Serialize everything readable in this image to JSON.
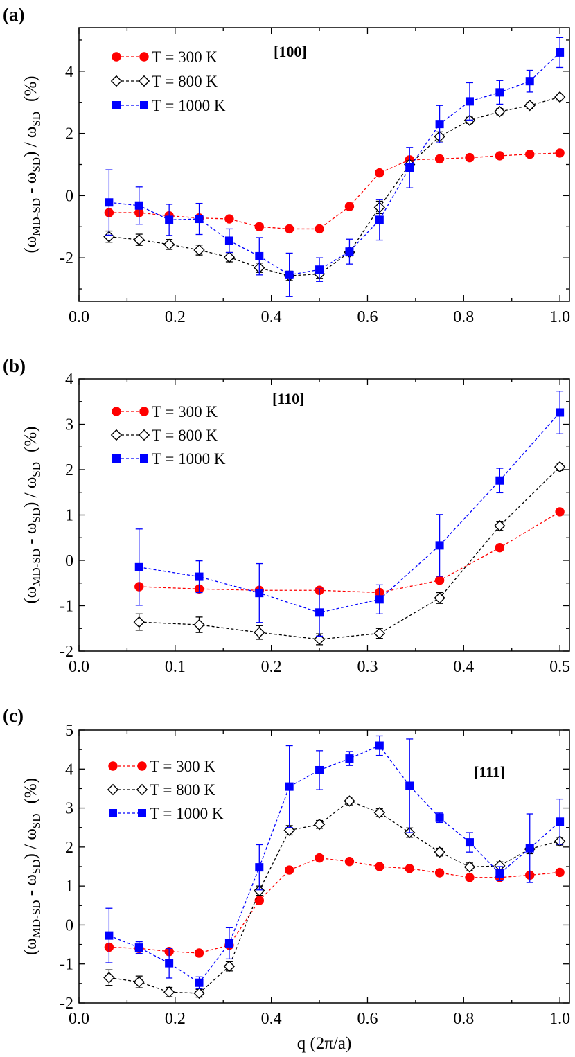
{
  "figure": {
    "xlabel": "q (2π/a)"
  },
  "legend": [
    {
      "key": "300",
      "text": "T = 300 K"
    },
    {
      "key": "800",
      "text": "T = 800 K"
    },
    {
      "key": "1000",
      "text": "T = 1000 K"
    }
  ],
  "ylabel": {
    "open": "(ω",
    "sub1": "MD-SD",
    "mid": " - ω",
    "sub2": "SD",
    "mid2": ") / ω",
    "sub3": "SD",
    "unit": "(%)"
  },
  "chart_data": [
    {
      "type": "line",
      "panel": "(a)",
      "direction": "[100]",
      "xlim": [
        0,
        1.02
      ],
      "ylim": [
        -3.4,
        5.4
      ],
      "xticks": [
        0.0,
        0.2,
        0.4,
        0.6,
        0.8,
        1.0
      ],
      "xtick_labels": [
        "0.0",
        "0.2",
        "0.4",
        "0.6",
        "0.8",
        "1.0"
      ],
      "yticks": [
        -2,
        0,
        2,
        4
      ],
      "ytick_labels": [
        "-2",
        "0",
        "2",
        "4"
      ],
      "x": [
        0.0625,
        0.125,
        0.1875,
        0.25,
        0.3125,
        0.375,
        0.4375,
        0.5,
        0.5625,
        0.625,
        0.6875,
        0.75,
        0.8125,
        0.875,
        0.9375,
        1.0
      ],
      "series": [
        {
          "key": "300",
          "name": "T = 300 K",
          "color": "#ff0000",
          "marker": "circle",
          "values": [
            -0.55,
            -0.55,
            -0.65,
            -0.72,
            -0.75,
            -1.0,
            -1.07,
            -1.07,
            -0.35,
            0.73,
            1.15,
            1.18,
            1.22,
            1.28,
            1.33,
            1.37
          ],
          "errors": [
            0,
            0,
            0,
            0,
            0,
            0,
            0,
            0,
            0,
            0,
            0,
            0,
            0,
            0,
            0,
            0
          ]
        },
        {
          "key": "800",
          "name": "T = 800 K",
          "color": "#000000",
          "marker": "diamond",
          "values": [
            -1.32,
            -1.42,
            -1.57,
            -1.75,
            -1.98,
            -2.32,
            -2.58,
            -2.52,
            -1.82,
            -0.38,
            1.0,
            1.9,
            2.42,
            2.7,
            2.9,
            3.17
          ],
          "errors": [
            0.18,
            0.18,
            0.16,
            0.16,
            0.15,
            0.15,
            0.15,
            0.15,
            0.12,
            0.2,
            0.12,
            0.15,
            0.1,
            0.1,
            0.1,
            0.1
          ]
        },
        {
          "key": "1000",
          "name": "T = 1000 K",
          "color": "#0000ff",
          "marker": "square",
          "values": [
            -0.22,
            -0.32,
            -0.78,
            -0.75,
            -1.45,
            -1.95,
            -2.55,
            -2.38,
            -1.8,
            -0.78,
            0.9,
            2.3,
            3.03,
            3.32,
            3.68,
            4.6
          ],
          "errors": [
            1.05,
            0.6,
            0.5,
            0.5,
            0.38,
            0.6,
            0.7,
            0.38,
            0.4,
            0.65,
            0.65,
            0.6,
            0.6,
            0.38,
            0.35,
            0.48
          ]
        }
      ]
    },
    {
      "type": "line",
      "panel": "(b)",
      "direction": "[110]",
      "xlim": [
        0,
        0.51
      ],
      "ylim": [
        -2,
        4
      ],
      "xticks": [
        0.0,
        0.1,
        0.2,
        0.3,
        0.4,
        0.5
      ],
      "xtick_labels": [
        "0.0",
        "0.1",
        "0.2",
        "0.3",
        "0.4",
        "0.5"
      ],
      "yticks": [
        -2,
        -1,
        0,
        1,
        2,
        3,
        4
      ],
      "ytick_labels": [
        "-2",
        "-1",
        "0",
        "1",
        "2",
        "3",
        "4"
      ],
      "x": [
        0.0625,
        0.125,
        0.1875,
        0.25,
        0.3125,
        0.375,
        0.4375,
        0.5
      ],
      "series": [
        {
          "key": "300",
          "name": "T = 300 K",
          "color": "#ff0000",
          "marker": "circle",
          "values": [
            -0.58,
            -0.63,
            -0.66,
            -0.66,
            -0.71,
            -0.44,
            0.28,
            1.07
          ],
          "errors": [
            0,
            0,
            0,
            0,
            0,
            0,
            0,
            0
          ]
        },
        {
          "key": "800",
          "name": "T = 800 K",
          "color": "#000000",
          "marker": "diamond",
          "values": [
            -1.36,
            -1.42,
            -1.59,
            -1.74,
            -1.61,
            -0.83,
            0.76,
            2.06
          ],
          "errors": [
            0.18,
            0.17,
            0.15,
            0.12,
            0.11,
            0.12,
            0.1,
            0.08
          ]
        },
        {
          "key": "1000",
          "name": "T = 1000 K",
          "color": "#0000ff",
          "marker": "square",
          "values": [
            -0.15,
            -0.36,
            -0.72,
            -1.15,
            -0.86,
            0.33,
            1.76,
            3.26
          ],
          "errors": [
            0.84,
            0.35,
            0.65,
            0.52,
            0.32,
            0.68,
            0.27,
            0.47
          ]
        }
      ]
    },
    {
      "type": "line",
      "panel": "(c)",
      "direction": "[111]",
      "xlim": [
        0,
        1.02
      ],
      "ylim": [
        -2,
        5
      ],
      "xticks": [
        0.0,
        0.2,
        0.4,
        0.6,
        0.8,
        1.0
      ],
      "xtick_labels": [
        "0.0",
        "0.2",
        "0.4",
        "0.6",
        "0.8",
        "1.0"
      ],
      "yticks": [
        -2,
        -1,
        0,
        1,
        2,
        3,
        4,
        5
      ],
      "ytick_labels": [
        "-2",
        "-1",
        "0",
        "1",
        "2",
        "3",
        "4",
        "5"
      ],
      "x": [
        0.0625,
        0.125,
        0.1875,
        0.25,
        0.3125,
        0.375,
        0.4375,
        0.5,
        0.5625,
        0.625,
        0.6875,
        0.75,
        0.8125,
        0.875,
        0.9375,
        1.0
      ],
      "series": [
        {
          "key": "300",
          "name": "T = 300 K",
          "color": "#ff0000",
          "marker": "circle",
          "values": [
            -0.57,
            -0.6,
            -0.68,
            -0.72,
            -0.52,
            0.63,
            1.41,
            1.72,
            1.63,
            1.5,
            1.45,
            1.34,
            1.22,
            1.22,
            1.28,
            1.35
          ],
          "errors": [
            0,
            0,
            0,
            0,
            0,
            0,
            0,
            0,
            0,
            0,
            0,
            0,
            0,
            0,
            0,
            0
          ]
        },
        {
          "key": "800",
          "name": "T = 800 K",
          "color": "#000000",
          "marker": "diamond",
          "values": [
            -1.35,
            -1.46,
            -1.72,
            -1.75,
            -1.06,
            0.88,
            2.43,
            2.58,
            3.18,
            2.88,
            2.37,
            1.87,
            1.49,
            1.52,
            1.95,
            2.15
          ],
          "errors": [
            0.2,
            0.15,
            0.12,
            0.1,
            0.12,
            0.12,
            0.12,
            0.1,
            0.1,
            0.1,
            0.12,
            0.1,
            0.1,
            0.1,
            0.12,
            0.1
          ]
        },
        {
          "key": "1000",
          "name": "T = 1000 K",
          "color": "#0000ff",
          "marker": "square",
          "values": [
            -0.27,
            -0.58,
            -0.98,
            -1.48,
            -0.47,
            1.48,
            3.55,
            3.97,
            4.27,
            4.6,
            3.57,
            2.75,
            2.12,
            1.32,
            1.97,
            2.65
          ],
          "errors": [
            0.7,
            0.15,
            0.38,
            0.15,
            0.4,
            0.58,
            1.05,
            0.5,
            0.18,
            0.25,
            1.2,
            0.12,
            0.25,
            0.18,
            0.88,
            0.58
          ]
        }
      ]
    }
  ]
}
